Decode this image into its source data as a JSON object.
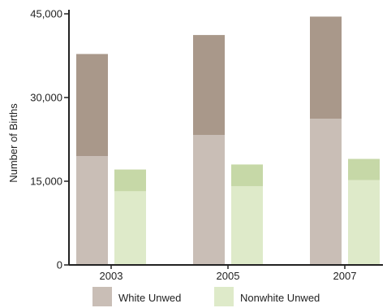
{
  "chart_data": {
    "type": "bar",
    "title": "",
    "xlabel": "",
    "ylabel": "Number of Births",
    "ylim": [
      0,
      45000
    ],
    "yticks": [
      0,
      15000,
      30000,
      45000
    ],
    "ytick_labels": [
      "0",
      "15,000",
      "30,000",
      "45,000"
    ],
    "categories": [
      "2003",
      "2005",
      "2007"
    ],
    "grid": false,
    "legend_position": "bottom",
    "groups": [
      {
        "name": "White Unwed",
        "legend_color": "#c9beb6",
        "totals": [
          37800,
          41200,
          44500
        ],
        "base": [
          19500,
          23300,
          26200
        ],
        "colors": {
          "base": "#c9beb6",
          "top": "#a9988a"
        }
      },
      {
        "name": "Nonwhite Unwed",
        "legend_color": "#deeac9",
        "totals": [
          17100,
          18000,
          19000
        ],
        "base": [
          13200,
          14100,
          15200
        ],
        "colors": {
          "base": "#deeac9",
          "top": "#c6d8a7"
        }
      }
    ]
  }
}
